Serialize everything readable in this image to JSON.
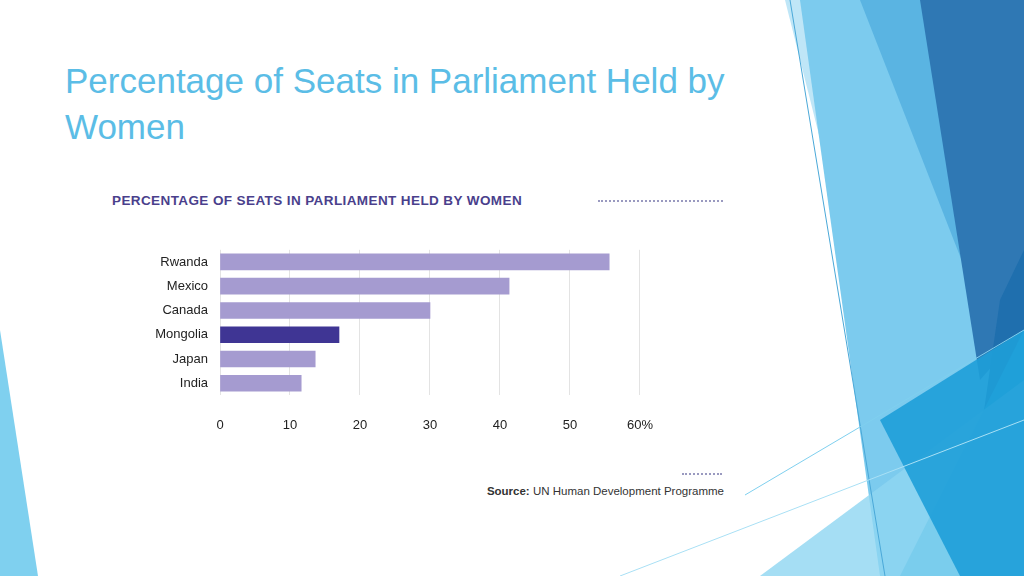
{
  "slide": {
    "title": "Percentage of Seats in Parliament Held by Women"
  },
  "chart_data": {
    "type": "bar",
    "orientation": "horizontal",
    "title": "PERCENTAGE OF SEATS IN PARLIAMENT HELD BY WOMEN",
    "categories": [
      "Rwanda",
      "Mexico",
      "Canada",
      "Mongolia",
      "Japan",
      "India"
    ],
    "values": [
      55.6,
      41.3,
      30,
      17,
      13.6,
      11.6
    ],
    "colors": [
      "#a59bd0",
      "#a59bd0",
      "#a59bd0",
      "#3f3594",
      "#a59bd0",
      "#a59bd0"
    ],
    "xlim": [
      0,
      60
    ],
    "xticks": [
      0,
      10,
      20,
      30,
      40,
      50,
      {
        "value": 60,
        "label": "60%"
      }
    ],
    "grid": true,
    "source": "Source: UN Human Development Programme"
  }
}
